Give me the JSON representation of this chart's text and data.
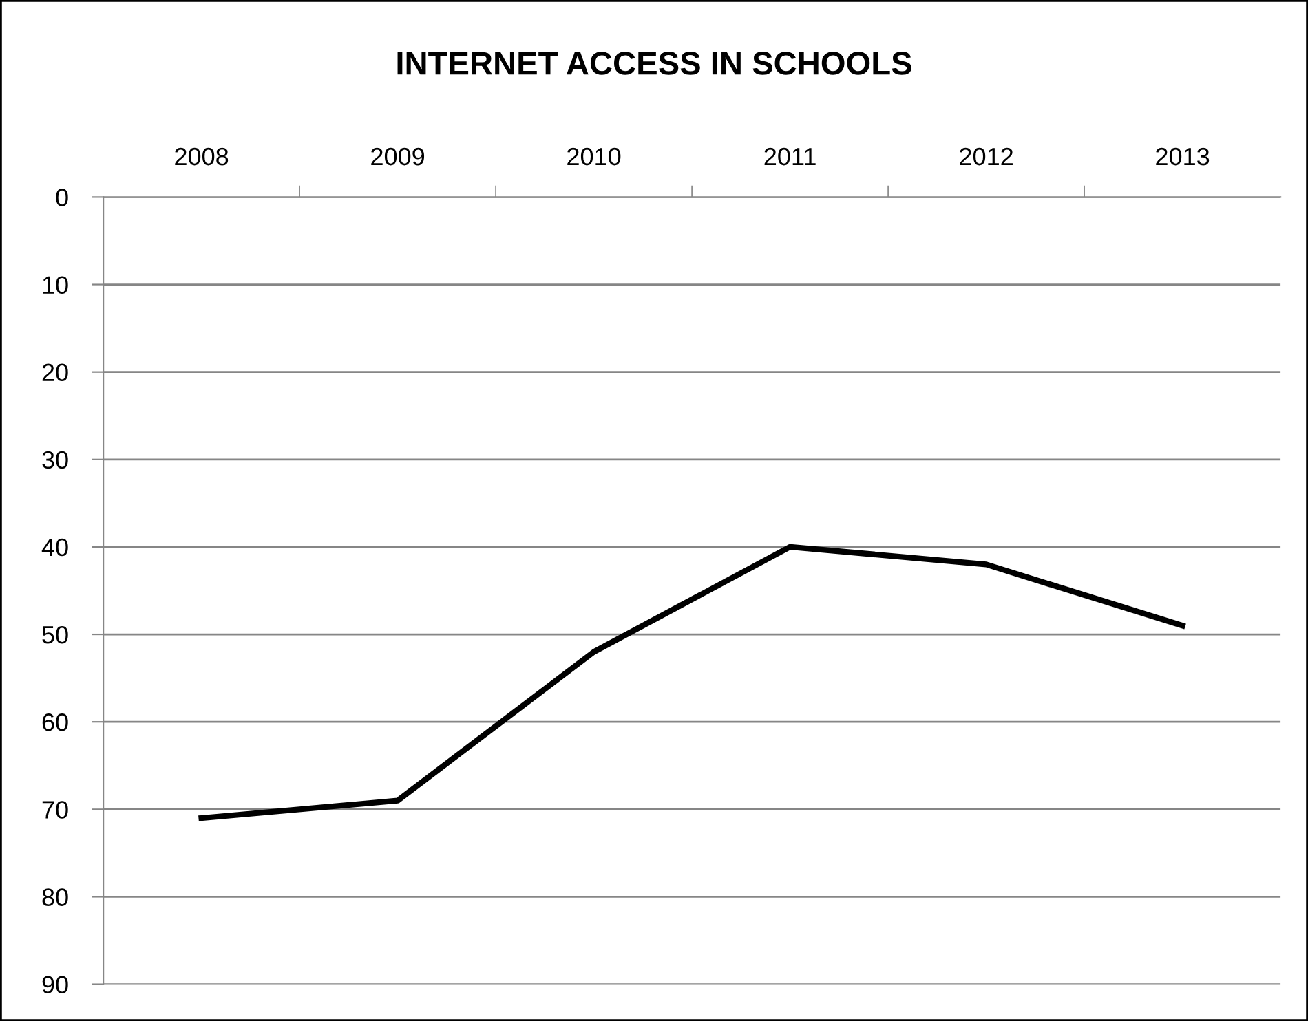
{
  "chart_data": {
    "type": "line",
    "title": "INTERNET ACCESS IN SCHOOLS",
    "categories": [
      "2008",
      "2009",
      "2010",
      "2011",
      "2012",
      "2013"
    ],
    "series": [
      {
        "color": "#000000",
        "values": [
          71,
          69,
          52,
          40,
          42,
          49
        ]
      }
    ],
    "ylim": [
      90,
      0
    ],
    "yticks": [
      0,
      10,
      20,
      30,
      40,
      50,
      60,
      70,
      80,
      90
    ],
    "grid": "y",
    "marker": "none",
    "line_style": "solid",
    "legend": false
  }
}
